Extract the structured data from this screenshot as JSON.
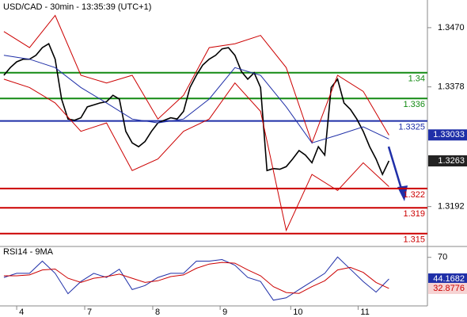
{
  "chart_data": [
    {
      "type": "line",
      "title": "USD/CAD - 30min - 13:35:39 (UTC+1)",
      "x": [
        0,
        1,
        2,
        3,
        4,
        5,
        6,
        7,
        8,
        9,
        10,
        11,
        12,
        13,
        14,
        15,
        16,
        17,
        18,
        19,
        20,
        21,
        22,
        23,
        24,
        25,
        26,
        27,
        28,
        29,
        30,
        31,
        32,
        33,
        34,
        35,
        36,
        37,
        38,
        39,
        40,
        41,
        42,
        43,
        44,
        45,
        46,
        47,
        48,
        49,
        50,
        51,
        52,
        53,
        54,
        55,
        56,
        57,
        58,
        59,
        60
      ],
      "xlim": [
        -0.6,
        66
      ],
      "ylim": [
        1.313,
        1.3513
      ],
      "yticks": [
        {
          "value": 1.347,
          "label": "1.3470"
        },
        {
          "value": 1.3378,
          "label": "1.3378"
        },
        1.3192
      ],
      "series": [
        {
          "color": "#000000",
          "values": [
            1.3396,
            1.3408,
            1.3417,
            1.3421,
            1.3421,
            1.3427,
            1.3439,
            1.3445,
            1.3421,
            1.3359,
            1.3328,
            1.3326,
            1.333,
            1.3347,
            1.335,
            1.3353,
            1.3355,
            1.3365,
            1.3359,
            1.3309,
            1.3291,
            1.3285,
            1.3293,
            1.3309,
            1.3322,
            1.3326,
            1.333,
            1.3328,
            1.334,
            1.3377,
            1.3396,
            1.3412,
            1.3421,
            1.3427,
            1.3437,
            1.3439,
            1.3427,
            1.3402,
            1.339,
            1.34,
            1.3377,
            1.3248,
            1.3251,
            1.325,
            1.3254,
            1.3266,
            1.3279,
            1.3272,
            1.326,
            1.3285,
            1.3272,
            1.3377,
            1.339,
            1.3353,
            1.3343,
            1.3328,
            1.3309,
            1.3285,
            1.3266,
            1.3242,
            1.3263
          ]
        },
        {
          "color": "#cc0000",
          "x": [
            0,
            4,
            8,
            12,
            16,
            20,
            24,
            28,
            32,
            36,
            40,
            44,
            48,
            52,
            56,
            60
          ],
          "values": [
            1.3464,
            1.3439,
            1.3489,
            1.3396,
            1.3384,
            1.3396,
            1.3328,
            1.3365,
            1.3439,
            1.3445,
            1.3458,
            1.3408,
            1.3291,
            1.3396,
            1.3371,
            1.3303
          ]
        },
        {
          "color": "#1f2fa8",
          "x": [
            0,
            4,
            8,
            12,
            16,
            20,
            24,
            28,
            32,
            36,
            40,
            44,
            48,
            52,
            56,
            60
          ],
          "values": [
            1.3427,
            1.3421,
            1.3408,
            1.3377,
            1.3353,
            1.3328,
            1.3322,
            1.3328,
            1.3359,
            1.3408,
            1.3396,
            1.3347,
            1.3291,
            1.3303,
            1.3316,
            1.3297
          ]
        },
        {
          "color": "#cc0000",
          "x": [
            0,
            4,
            8,
            12,
            16,
            20,
            24,
            28,
            32,
            36,
            40,
            44,
            48,
            52,
            56,
            60
          ],
          "values": [
            1.339,
            1.3377,
            1.3353,
            1.3309,
            1.3322,
            1.3248,
            1.3266,
            1.3309,
            1.3328,
            1.3384,
            1.334,
            1.3155,
            1.3242,
            1.3217,
            1.326,
            1.3223
          ]
        }
      ],
      "levels": [
        {
          "value": 1.34,
          "color": "#138a13"
        },
        {
          "value": 1.336,
          "color": "#138a13"
        },
        {
          "value": 1.3325,
          "color": "#1f2fa8"
        },
        {
          "value": 1.322,
          "color": "#cc0000"
        },
        {
          "value": 1.319,
          "color": "#cc0000"
        },
        {
          "value": 1.315,
          "color": "#cc0000"
        }
      ],
      "markers": [
        {
          "value": 1.33033,
          "color": "#1f2fa8"
        },
        {
          "value": 1.32631,
          "color": "#cc0000"
        },
        {
          "value": 1.3263,
          "color": "#222222"
        }
      ]
    },
    {
      "type": "line",
      "title": "RSI14 - 9MA",
      "x": [
        0,
        2,
        4,
        6,
        8,
        10,
        12,
        14,
        16,
        18,
        20,
        22,
        24,
        26,
        28,
        30,
        32,
        34,
        36,
        38,
        40,
        42,
        44,
        46,
        48,
        50,
        52,
        54,
        56,
        58,
        60
      ],
      "xlim": [
        -0.6,
        66
      ],
      "xticks": [
        {
          "value": 2,
          "label": "4"
        },
        {
          "value": 12.6,
          "label": "7"
        },
        {
          "value": 23.2,
          "label": "8"
        },
        {
          "value": 33.7,
          "label": "9"
        },
        {
          "value": 44.7,
          "label": "10"
        },
        {
          "value": 55.2,
          "label": "11"
        }
      ],
      "ylim": [
        12,
        83
      ],
      "yticks": [
        70
      ],
      "series": [
        {
          "color": "#1f2fa8",
          "values": [
            46.0,
            50.9,
            50.9,
            65.5,
            50.9,
            26.6,
            41.2,
            50.9,
            46.0,
            55.8,
            31.5,
            36.3,
            46.0,
            50.9,
            50.9,
            65.5,
            65.5,
            67.4,
            60.6,
            46.0,
            41.2,
            18.8,
            21.7,
            31.5,
            41.2,
            50.9,
            70.4,
            55.8,
            41.2,
            28.5,
            44.17
          ]
        },
        {
          "color": "#cc0000",
          "values": [
            48,
            48,
            49,
            55,
            56,
            45,
            40,
            45,
            47,
            50,
            45,
            40,
            42,
            47,
            49,
            57,
            62,
            64,
            63,
            55,
            48,
            35,
            28,
            27,
            35,
            42,
            55,
            58,
            52,
            40,
            32.88
          ]
        }
      ],
      "markers": [
        {
          "value": 44.1682,
          "color": "#1f2fa8"
        },
        {
          "value": 32.8776,
          "color": "#cc0000"
        }
      ]
    }
  ]
}
